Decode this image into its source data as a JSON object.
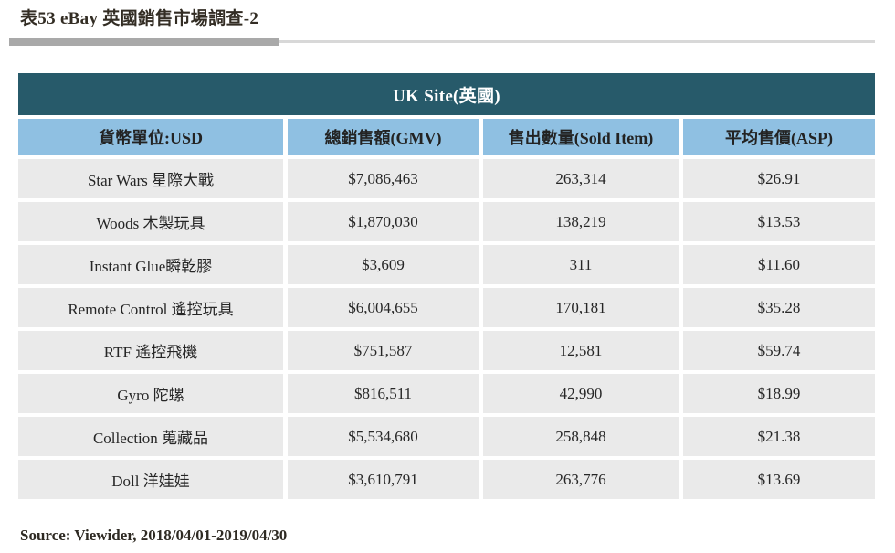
{
  "page": {
    "title": "表53 eBay 英國銷售市場調查-2",
    "source": "Source: Viewider, 2018/04/01-2019/04/30"
  },
  "table": {
    "banner": "UK Site(英國)",
    "columns": [
      "貨幣單位:USD",
      "總銷售額(GMV)",
      "售出數量(Sold Item)",
      "平均售價(ASP)"
    ],
    "rows": [
      {
        "category": "Star Wars 星際大戰",
        "gmv": "$7,086,463",
        "sold_items": "263,314",
        "asp": "$26.91"
      },
      {
        "category": "Woods 木製玩具",
        "gmv": "$1,870,030",
        "sold_items": "138,219",
        "asp": "$13.53"
      },
      {
        "category": "Instant Glue瞬乾膠",
        "gmv": "$3,609",
        "sold_items": "311",
        "asp": "$11.60"
      },
      {
        "category": "Remote Control 遙控玩具",
        "gmv": "$6,004,655",
        "sold_items": "170,181",
        "asp": "$35.28"
      },
      {
        "category": "RTF 遙控飛機",
        "gmv": "$751,587",
        "sold_items": "12,581",
        "asp": "$59.74"
      },
      {
        "category": "Gyro 陀螺",
        "gmv": "$816,511",
        "sold_items": "42,990",
        "asp": "$18.99"
      },
      {
        "category": "Collection 蒐藏品",
        "gmv": "$5,534,680",
        "sold_items": "258,848",
        "asp": "$21.38"
      },
      {
        "category": "Doll 洋娃娃",
        "gmv": "$3,610,791",
        "sold_items": "263,776",
        "asp": "$13.69"
      }
    ]
  },
  "colors": {
    "banner_bg": "#275a6a",
    "banner_text": "#ffffff",
    "column_header_bg": "#8fc0e2",
    "row_bg": "#eaeaea",
    "text": "#262626",
    "divider_dark": "#a9a9a9",
    "divider_light": "#d8d8d8"
  }
}
